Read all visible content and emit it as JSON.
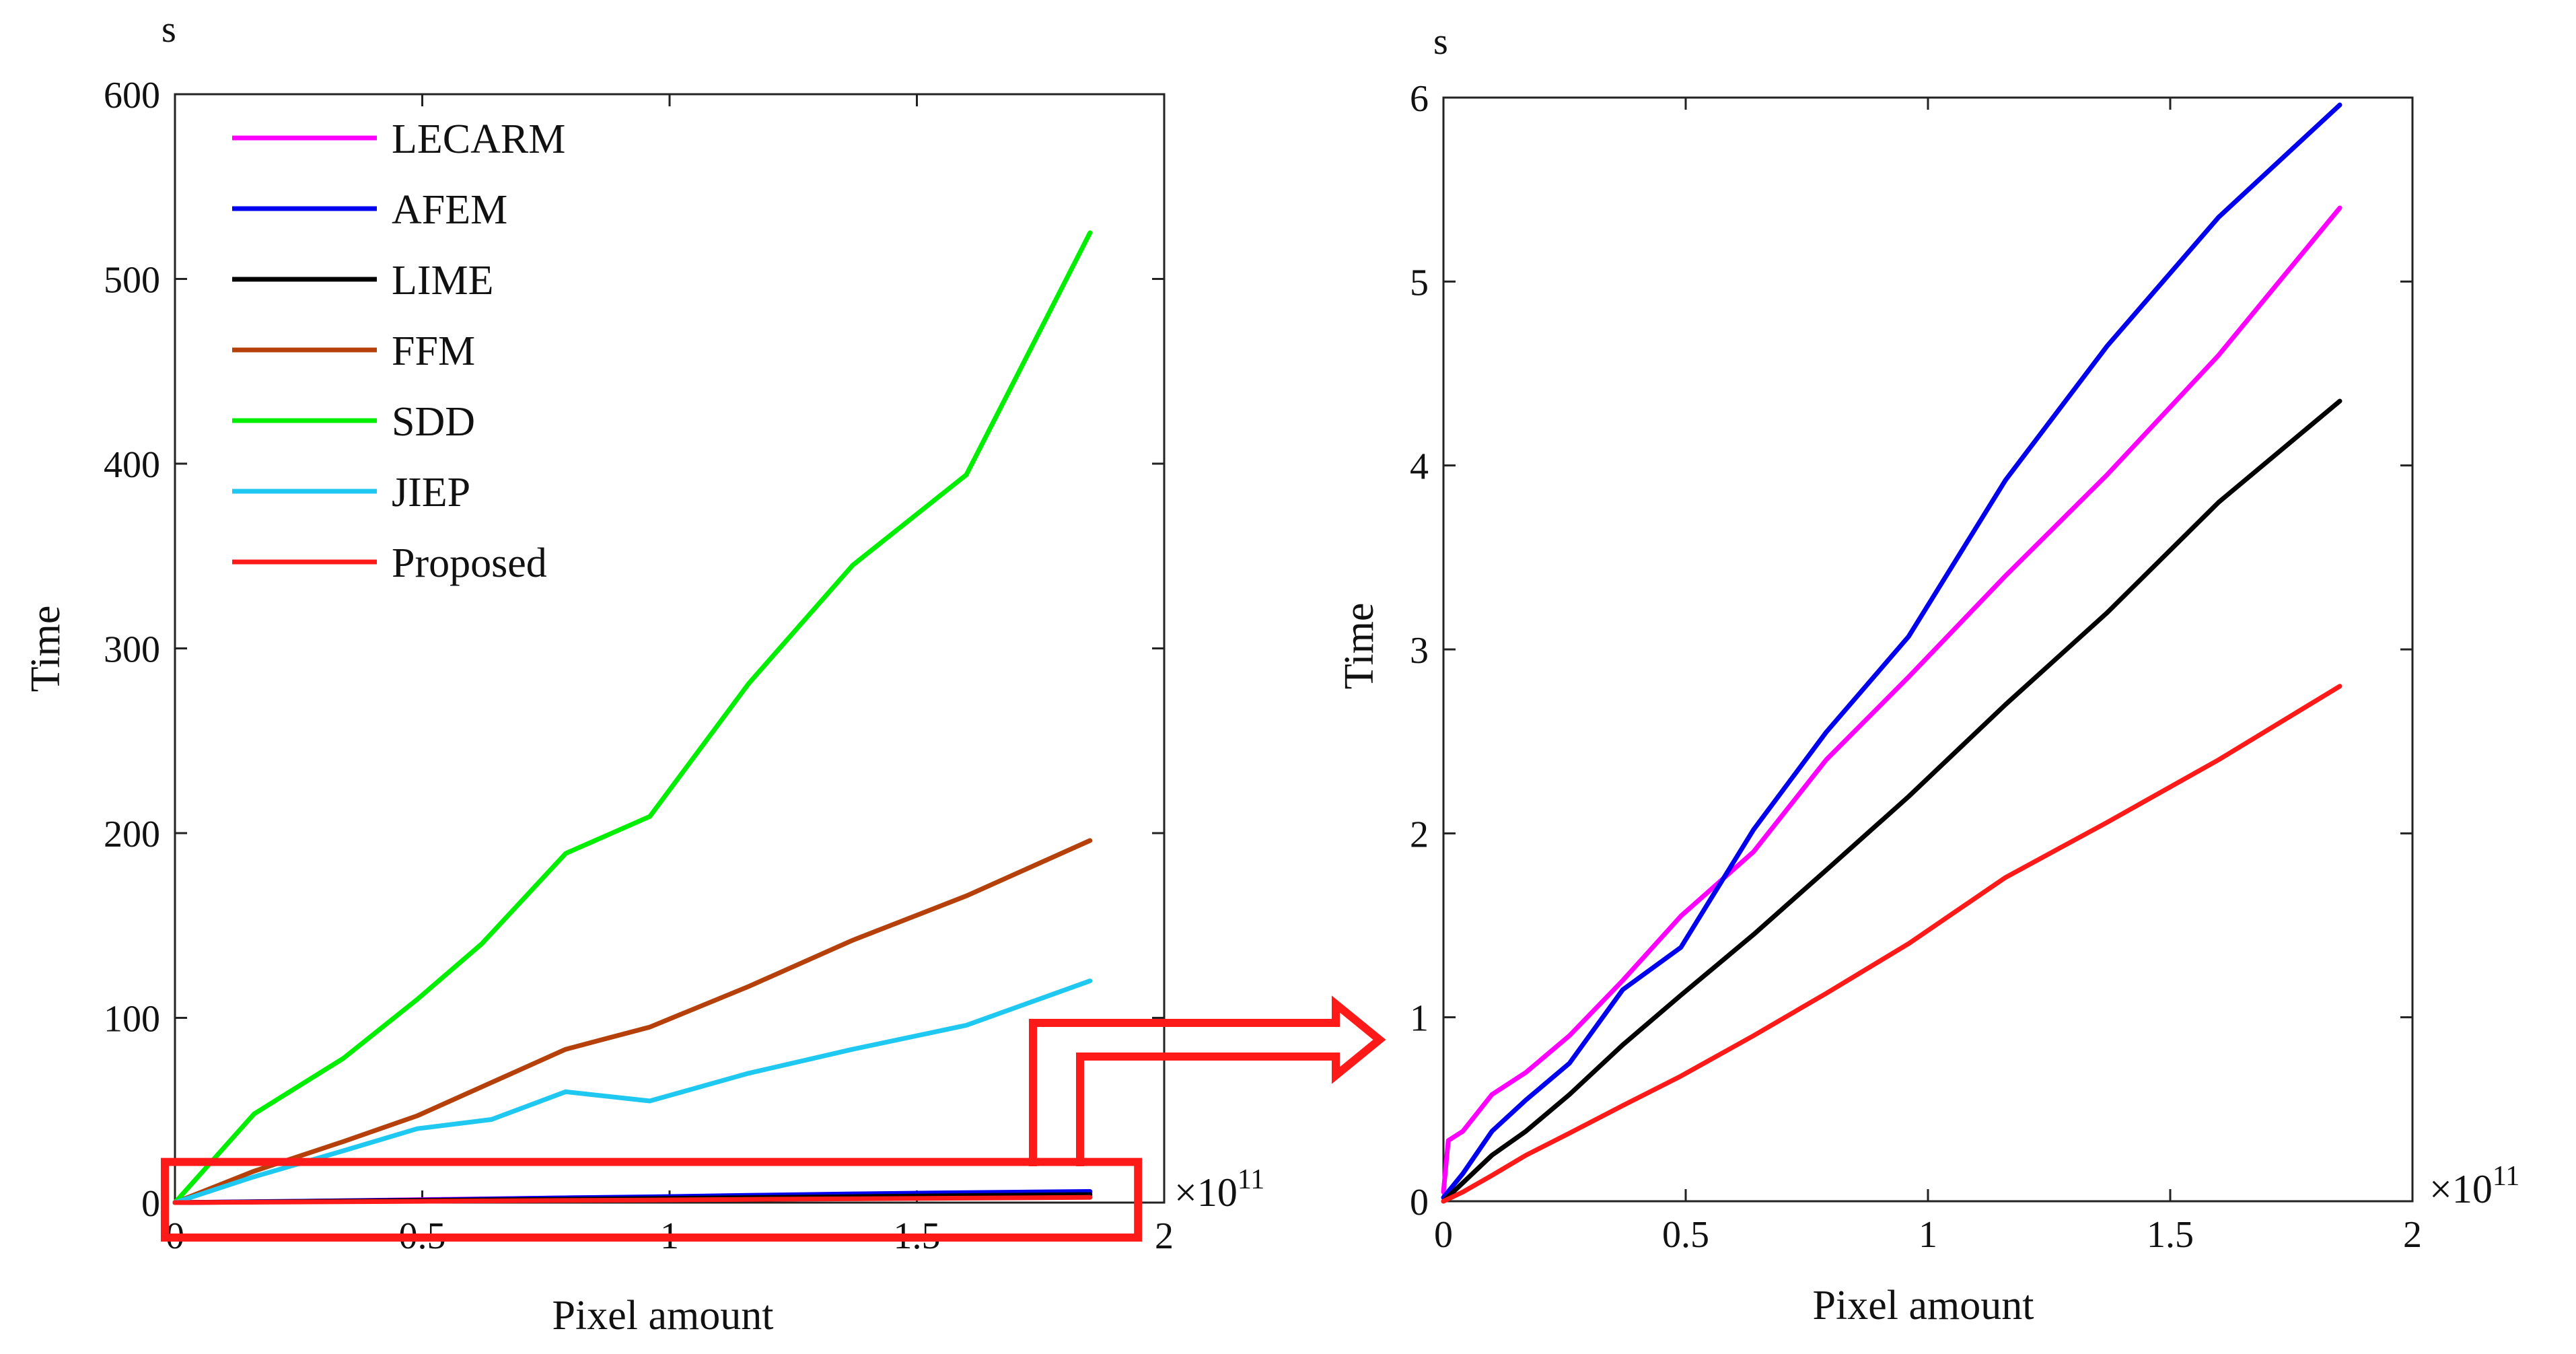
{
  "figure": {
    "colors": {
      "highlight": "#ff1a1a",
      "axis": "#222222",
      "background": "#ffffff"
    },
    "exponent_prefix": "×10",
    "exponent_power": "11"
  },
  "chart_data": [
    {
      "type": "line",
      "panel": "left",
      "title": "",
      "xlabel": "Pixel amount",
      "ylabel": "Time",
      "y_unit": "s",
      "xlim": [
        0,
        2
      ],
      "ylim": [
        0,
        600
      ],
      "x_multiplier": "×10^11",
      "xticks": [
        0,
        0.5,
        1,
        1.5,
        2
      ],
      "xtick_labels": [
        "0",
        "0.5",
        "1",
        "1.5",
        "2"
      ],
      "yticks": [
        0,
        100,
        200,
        300,
        400,
        500,
        600
      ],
      "ytick_labels": [
        "0",
        "100",
        "200",
        "300",
        "400",
        "500",
        "600"
      ],
      "legend": {
        "placement": "top-left"
      },
      "highlight_region": {
        "x": [
          0,
          1.92
        ],
        "y": [
          -8,
          22
        ],
        "description": "zoomed region shown in right panel"
      },
      "series": [
        {
          "name": "LECARM",
          "color": "#ff00ff",
          "x": [
            0,
            0.2,
            0.5,
            0.8,
            0.96,
            1.16,
            1.37,
            1.6,
            1.85
          ],
          "y": [
            0,
            0.5,
            1.6,
            2.6,
            2.9,
            3.4,
            3.9,
            4.6,
            5.4
          ]
        },
        {
          "name": "AFEM",
          "color": "#0000ee",
          "x": [
            0,
            0.2,
            0.5,
            0.8,
            0.96,
            1.16,
            1.37,
            1.6,
            1.85
          ],
          "y": [
            0,
            0.6,
            1.4,
            2.6,
            3.1,
            3.9,
            4.7,
            5.4,
            6.0
          ]
        },
        {
          "name": "LIME",
          "color": "#000000",
          "x": [
            0,
            0.2,
            0.5,
            0.8,
            0.96,
            1.16,
            1.37,
            1.6,
            1.85
          ],
          "y": [
            0,
            0.4,
            1.15,
            1.8,
            2.2,
            2.7,
            3.2,
            3.8,
            4.35
          ]
        },
        {
          "name": "FFM",
          "color": "#b5400a",
          "x": [
            0,
            0.16,
            0.34,
            0.49,
            0.64,
            0.79,
            0.96,
            1.16,
            1.37,
            1.6,
            1.85
          ],
          "y": [
            0,
            17,
            33,
            47,
            65,
            83,
            95,
            117,
            142,
            166,
            196
          ]
        },
        {
          "name": "SDD",
          "color": "#00ee00",
          "x": [
            0,
            0.16,
            0.34,
            0.49,
            0.62,
            0.79,
            0.96,
            1.16,
            1.37,
            1.6,
            1.85
          ],
          "y": [
            0,
            48,
            78,
            110,
            140,
            189,
            209,
            281,
            345,
            394,
            525
          ]
        },
        {
          "name": "JIEP",
          "color": "#1ec8f0",
          "x": [
            0,
            0.16,
            0.34,
            0.49,
            0.64,
            0.79,
            0.96,
            1.16,
            1.37,
            1.6,
            1.85
          ],
          "y": [
            0,
            14,
            28,
            40,
            45,
            60,
            55,
            70,
            83,
            96,
            120
          ]
        },
        {
          "name": "Proposed",
          "color": "#ff1a1a",
          "x": [
            0,
            0.2,
            0.5,
            0.8,
            0.96,
            1.16,
            1.37,
            1.6,
            1.85
          ],
          "y": [
            0,
            0.25,
            0.7,
            1.15,
            1.4,
            1.75,
            2.05,
            2.4,
            2.8
          ]
        }
      ]
    },
    {
      "type": "line",
      "panel": "right",
      "title": "",
      "xlabel": "Pixel amount",
      "ylabel": "Time",
      "y_unit": "s",
      "xlim": [
        0,
        2
      ],
      "ylim": [
        0,
        6
      ],
      "x_multiplier": "×10^11",
      "xticks": [
        0,
        0.5,
        1,
        1.5,
        2
      ],
      "xtick_labels": [
        "0",
        "0.5",
        "1",
        "1.5",
        "2"
      ],
      "yticks": [
        0,
        1,
        2,
        3,
        4,
        5,
        6
      ],
      "ytick_labels": [
        "0",
        "1",
        "2",
        "3",
        "4",
        "5",
        "6"
      ],
      "series": [
        {
          "name": "LECARM",
          "color": "#ff00ff",
          "x": [
            0,
            0.01,
            0.04,
            0.1,
            0.17,
            0.26,
            0.37,
            0.49,
            0.64,
            0.79,
            0.96,
            1.16,
            1.37,
            1.6,
            1.85
          ],
          "y": [
            0.05,
            0.33,
            0.38,
            0.58,
            0.7,
            0.9,
            1.2,
            1.55,
            1.9,
            2.4,
            2.85,
            3.4,
            3.95,
            4.6,
            5.4
          ]
        },
        {
          "name": "AFEM",
          "color": "#0000ee",
          "x": [
            0,
            0.04,
            0.1,
            0.17,
            0.26,
            0.37,
            0.49,
            0.64,
            0.79,
            0.96,
            1.16,
            1.37,
            1.6,
            1.85
          ],
          "y": [
            0.02,
            0.15,
            0.38,
            0.55,
            0.75,
            1.15,
            1.38,
            2.02,
            2.55,
            3.07,
            3.92,
            4.65,
            5.35,
            5.96
          ]
        },
        {
          "name": "LIME",
          "color": "#000000",
          "x": [
            0,
            0.04,
            0.1,
            0.17,
            0.26,
            0.37,
            0.49,
            0.64,
            0.79,
            0.96,
            1.16,
            1.37,
            1.6,
            1.85
          ],
          "y": [
            0,
            0.1,
            0.25,
            0.38,
            0.58,
            0.85,
            1.12,
            1.45,
            1.8,
            2.2,
            2.7,
            3.2,
            3.8,
            4.35
          ]
        },
        {
          "name": "Proposed",
          "color": "#ff1a1a",
          "x": [
            0,
            0.04,
            0.1,
            0.17,
            0.26,
            0.37,
            0.49,
            0.64,
            0.79,
            0.96,
            1.16,
            1.37,
            1.6,
            1.85
          ],
          "y": [
            0,
            0.05,
            0.14,
            0.25,
            0.37,
            0.52,
            0.68,
            0.9,
            1.13,
            1.4,
            1.76,
            2.06,
            2.4,
            2.8
          ]
        }
      ]
    }
  ]
}
